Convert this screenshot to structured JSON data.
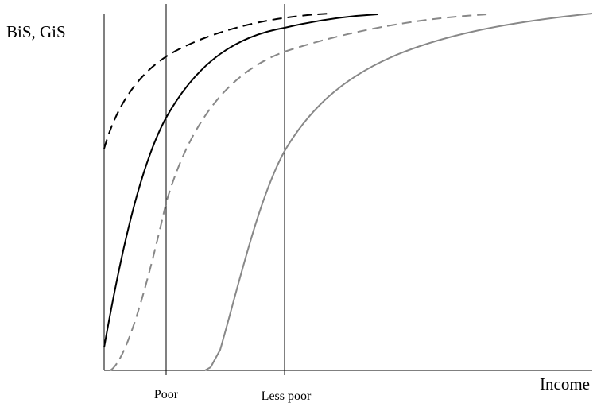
{
  "y_axis_label": "BiS, GiS",
  "x_axis_label": "Income",
  "markers": [
    "Poor",
    "Less poor"
  ]
}
